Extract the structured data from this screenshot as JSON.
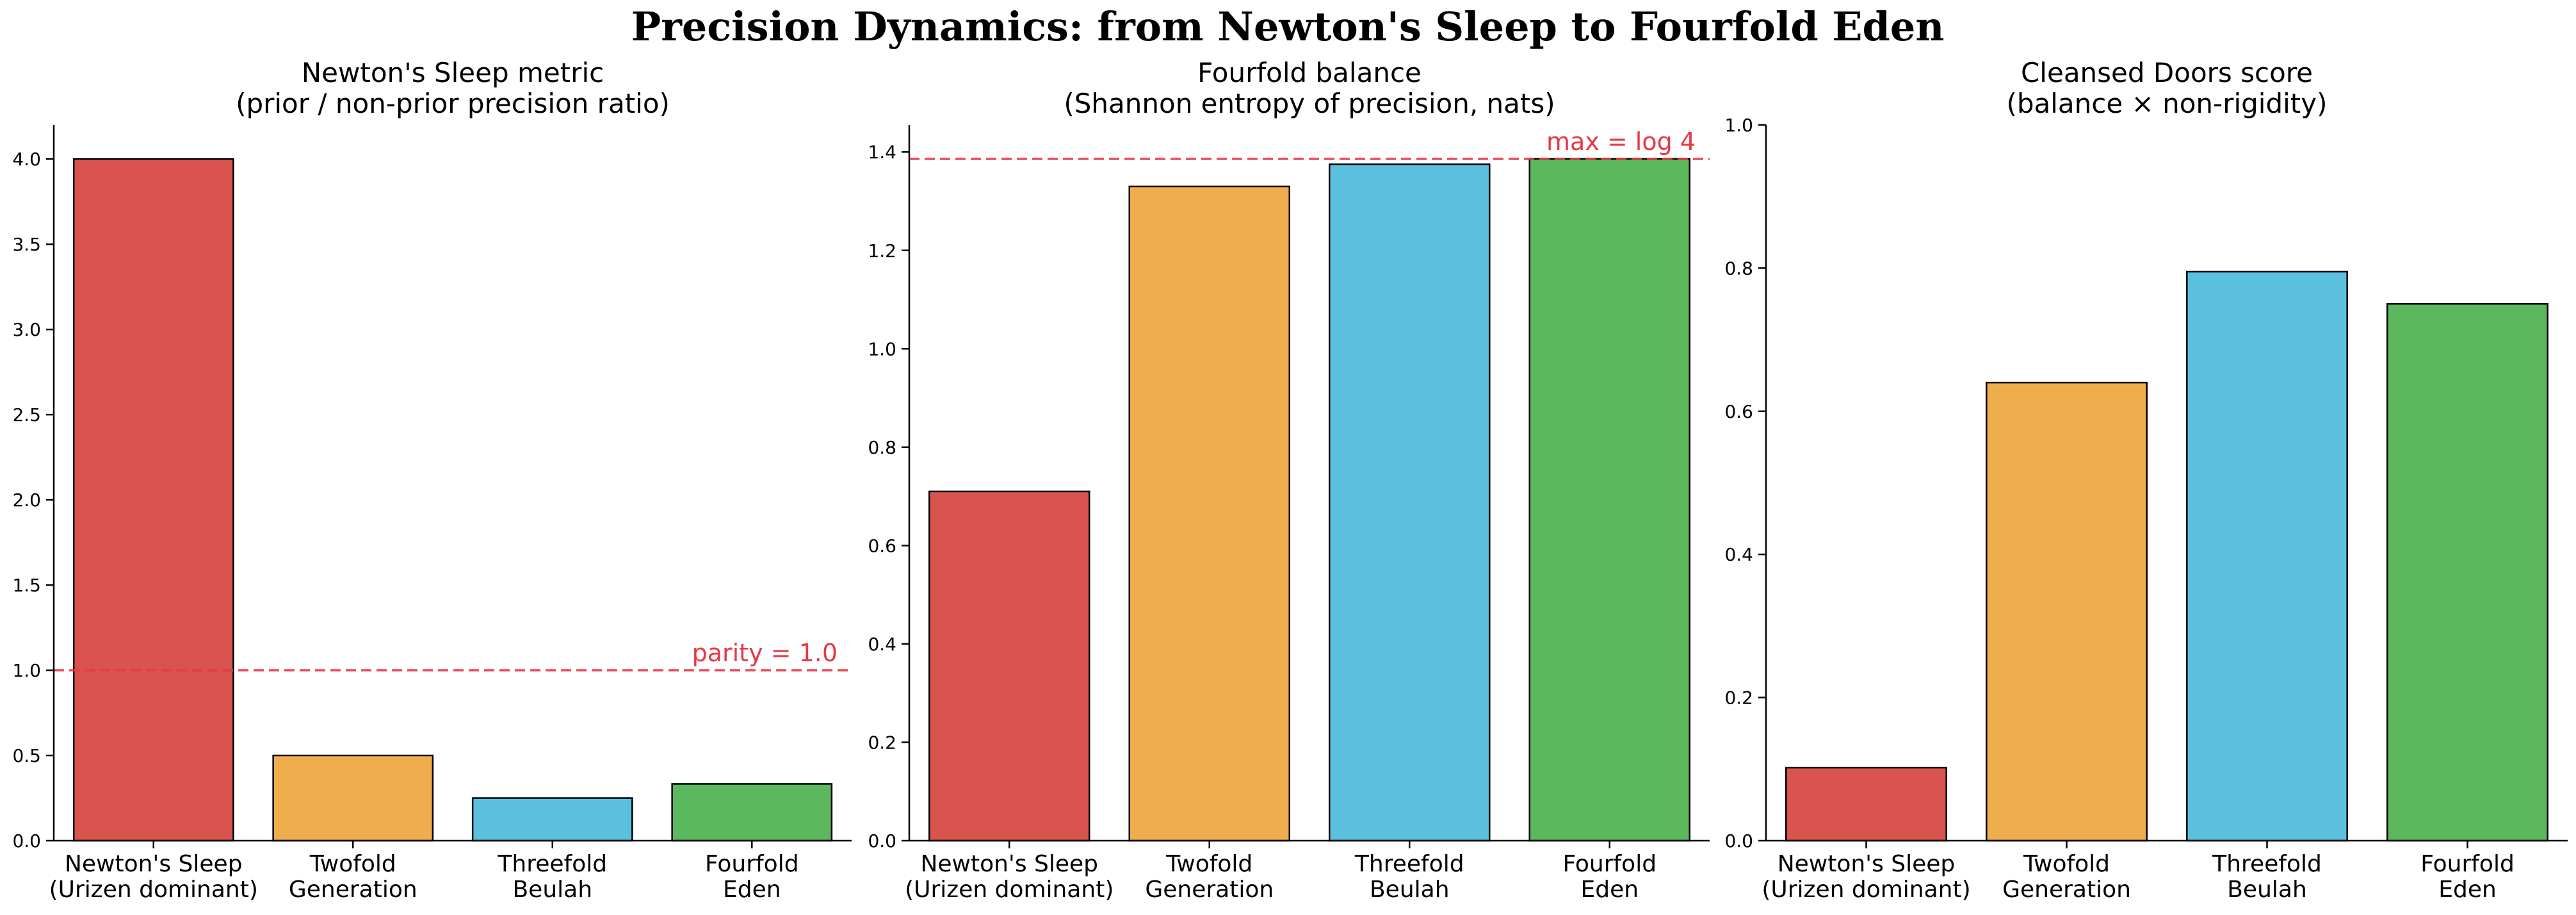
{
  "figure": {
    "suptitle": "Precision Dynamics: from Newton's Sleep to Fourfold Eden"
  },
  "chart_data": [
    {
      "type": "bar",
      "title": "Newton's Sleep metric",
      "subtitle": "(prior / non-prior precision ratio)",
      "categories": [
        [
          "Newton's Sleep",
          "(Urizen dominant)"
        ],
        [
          "Twofold",
          "Generation"
        ],
        [
          "Threefold",
          "Beulah"
        ],
        [
          "Fourfold",
          "Eden"
        ]
      ],
      "values": [
        4.0,
        0.5,
        0.25,
        0.333
      ],
      "colors": [
        "#d9534f",
        "#f0ad4e",
        "#5bc0de",
        "#5cb85c"
      ],
      "ylim": [
        0,
        4.2
      ],
      "yticks": [
        0.0,
        0.5,
        1.0,
        1.5,
        2.0,
        2.5,
        3.0,
        3.5,
        4.0
      ],
      "ytick_labels": [
        "0.0",
        "0.5",
        "1.0",
        "1.5",
        "2.0",
        "2.5",
        "3.0",
        "3.5",
        "4.0"
      ],
      "reference_line": {
        "y": 1.0,
        "label": "parity = 1.0",
        "color": "#e63946"
      },
      "grid": false
    },
    {
      "type": "bar",
      "title": "Fourfold balance",
      "subtitle": "(Shannon entropy of precision, nats)",
      "categories": [
        [
          "Newton's Sleep",
          "(Urizen dominant)"
        ],
        [
          "Twofold",
          "Generation"
        ],
        [
          "Threefold",
          "Beulah"
        ],
        [
          "Fourfold",
          "Eden"
        ]
      ],
      "values": [
        0.71,
        1.33,
        1.375,
        1.386
      ],
      "colors": [
        "#d9534f",
        "#f0ad4e",
        "#5bc0de",
        "#5cb85c"
      ],
      "ylim": [
        0,
        1.455
      ],
      "yticks": [
        0.0,
        0.2,
        0.4,
        0.6,
        0.8,
        1.0,
        1.2,
        1.4
      ],
      "ytick_labels": [
        "0.0",
        "0.2",
        "0.4",
        "0.6",
        "0.8",
        "1.0",
        "1.2",
        "1.4"
      ],
      "reference_line": {
        "y": 1.386,
        "label": "max = log 4",
        "color": "#e63946"
      },
      "grid": false
    },
    {
      "type": "bar",
      "title": "Cleansed Doors score",
      "subtitle": "(balance × non-rigidity)",
      "categories": [
        [
          "Newton's Sleep",
          "(Urizen dominant)"
        ],
        [
          "Twofold",
          "Generation"
        ],
        [
          "Threefold",
          "Beulah"
        ],
        [
          "Fourfold",
          "Eden"
        ]
      ],
      "values": [
        0.102,
        0.64,
        0.795,
        0.75
      ],
      "colors": [
        "#d9534f",
        "#f0ad4e",
        "#5bc0de",
        "#5cb85c"
      ],
      "ylim": [
        0,
        1.0
      ],
      "yticks": [
        0.0,
        0.2,
        0.4,
        0.6,
        0.8,
        1.0
      ],
      "ytick_labels": [
        "0.0",
        "0.2",
        "0.4",
        "0.6",
        "0.8",
        "1.0"
      ],
      "reference_line": null,
      "grid": false
    }
  ]
}
